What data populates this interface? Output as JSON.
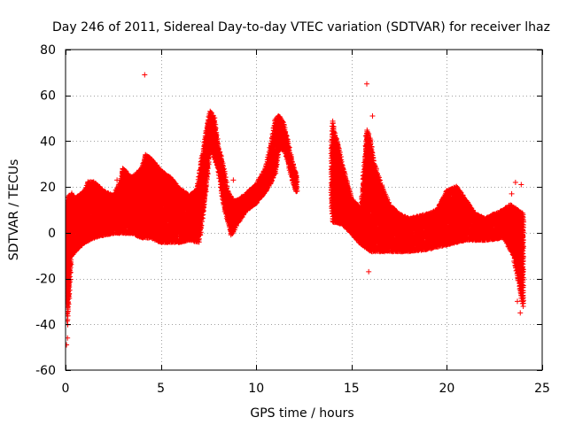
{
  "chart_data": {
    "type": "scatter",
    "title": "Day 246 of 2011, Sidereal Day-to-day VTEC variation (SDTVAR) for receiver lhaz",
    "xlabel": "GPS time / hours",
    "ylabel": "SDTVAR / TECUs",
    "xlim": [
      0,
      25
    ],
    "ylim": [
      -60,
      80
    ],
    "xticks": [
      0,
      5,
      10,
      15,
      20,
      25
    ],
    "yticks": [
      -60,
      -40,
      -20,
      0,
      20,
      40,
      60,
      80
    ],
    "grid": true,
    "marker": "+",
    "color": "#ff0000",
    "series": [
      {
        "name": "SDTVAR",
        "upper_envelope": {
          "x": [
            0.0,
            0.1,
            0.3,
            0.5,
            1.0,
            1.2,
            1.5,
            2.0,
            2.5,
            2.9,
            3.0,
            3.2,
            3.5,
            4.0,
            4.2,
            4.5,
            5.0,
            5.5,
            6.0,
            6.5,
            6.9,
            7.2,
            7.4,
            7.6,
            7.8,
            8.0,
            8.3,
            8.5,
            8.8,
            9.0,
            9.5,
            10.0,
            10.5,
            10.8,
            11.0,
            11.2,
            11.4,
            11.6,
            11.8,
            12.0,
            12.1,
            13.9,
            14.0,
            14.1,
            14.3,
            14.5,
            15.0,
            15.5,
            15.8,
            16.0,
            16.2,
            16.5,
            17.0,
            17.5,
            18.0,
            19.0,
            19.5,
            20.0,
            20.5,
            21.0,
            21.5,
            22.0,
            22.5,
            23.0,
            23.3,
            23.7,
            24.0
          ],
          "y": [
            8,
            15,
            17,
            15,
            18,
            22,
            22,
            18,
            16,
            22,
            28,
            26,
            24,
            28,
            34,
            32,
            27,
            24,
            19,
            16,
            19,
            35,
            46,
            53,
            50,
            38,
            28,
            18,
            14,
            14,
            17,
            21,
            28,
            40,
            49,
            51,
            48,
            42,
            34,
            28,
            25,
            25,
            49,
            44,
            38,
            30,
            15,
            10,
            45,
            40,
            30,
            22,
            12,
            8,
            6,
            8,
            10,
            18,
            20,
            14,
            8,
            6,
            8,
            10,
            12,
            10,
            8
          ]
        },
        "lower_envelope": {
          "x": [
            0.0,
            0.1,
            0.3,
            0.5,
            1.0,
            1.5,
            2.0,
            2.5,
            3.0,
            3.5,
            4.0,
            4.5,
            5.0,
            5.5,
            6.0,
            6.5,
            7.0,
            7.3,
            7.6,
            8.0,
            8.3,
            8.7,
            9.0,
            9.5,
            10.0,
            10.5,
            11.0,
            11.2,
            11.5,
            12.0,
            12.1,
            13.9,
            14.0,
            14.5,
            15.0,
            15.5,
            16.0,
            17.0,
            18.0,
            19.0,
            20.0,
            21.0,
            22.0,
            23.0,
            23.5,
            24.0
          ],
          "y": [
            -5,
            -40,
            -10,
            -8,
            -4,
            -2,
            -1,
            0,
            0,
            0,
            -2,
            -2,
            -4,
            -4,
            -4,
            -3,
            -4,
            14,
            38,
            28,
            12,
            -1,
            4,
            10,
            13,
            18,
            26,
            37,
            36,
            20,
            18,
            18,
            5,
            4,
            0,
            -5,
            -8,
            -8,
            -8,
            -7,
            -5,
            -3,
            -3,
            -2,
            -10,
            -32
          ]
        },
        "outliers": [
          {
            "x": 4.15,
            "y": 69
          },
          {
            "x": 15.8,
            "y": 65
          },
          {
            "x": 16.1,
            "y": 51
          },
          {
            "x": 3.0,
            "y": 25
          },
          {
            "x": 2.7,
            "y": 23
          },
          {
            "x": 8.8,
            "y": 23
          },
          {
            "x": 15.9,
            "y": -17
          },
          {
            "x": 23.4,
            "y": 17
          },
          {
            "x": 23.6,
            "y": 22
          },
          {
            "x": 0.05,
            "y": -49
          },
          {
            "x": 0.1,
            "y": -46
          },
          {
            "x": 23.7,
            "y": -30
          },
          {
            "x": 23.85,
            "y": -35
          },
          {
            "x": 23.9,
            "y": 21
          },
          {
            "x": 1.75,
            "y": 18
          }
        ]
      }
    ]
  }
}
